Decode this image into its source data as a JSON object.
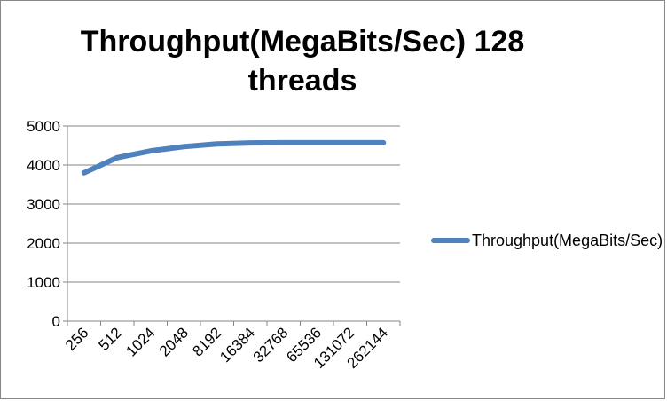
{
  "chart_data": {
    "type": "line",
    "title": "Throughput(MegaBits/Sec) 128 threads",
    "xlabel": "",
    "ylabel": "",
    "categories": [
      "256",
      "512",
      "1024",
      "2048",
      "8192",
      "16384",
      "32768",
      "65536",
      "131072",
      "262144"
    ],
    "ylim": [
      0,
      5000
    ],
    "yticks": [
      0,
      1000,
      2000,
      3000,
      4000,
      5000
    ],
    "grid": "horizontal",
    "legend_position": "right",
    "series": [
      {
        "name": "Throughput(MegaBits/Sec)",
        "color": "#4f81bd",
        "values": [
          3800,
          4190,
          4360,
          4470,
          4540,
          4565,
          4570,
          4570,
          4570,
          4570
        ]
      }
    ]
  },
  "legend": {
    "label": "Throughput(MegaBits/Sec)"
  }
}
